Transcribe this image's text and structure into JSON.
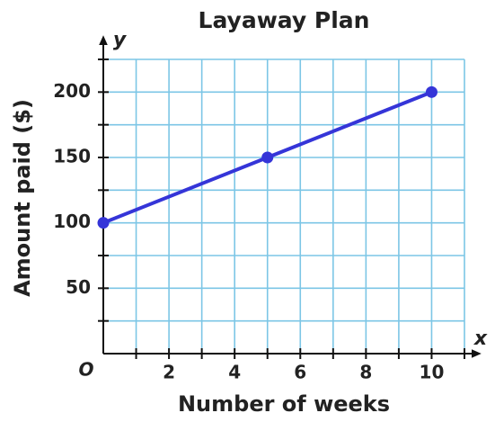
{
  "chart_data": {
    "type": "line",
    "title": "Layaway Plan",
    "x_label": "Number of weeks",
    "y_label": "Amount paid ($)",
    "x_axis_letter": "x",
    "y_axis_letter": "y",
    "origin_label": "O",
    "x": [
      0,
      5,
      10
    ],
    "values": [
      100,
      150,
      200
    ],
    "color": "#3535d8",
    "xlim": [
      0,
      11
    ],
    "ylim": [
      0,
      225
    ],
    "xticks": [
      2,
      4,
      6,
      8,
      10
    ],
    "yticks": [
      50,
      100,
      150,
      200
    ],
    "xgrid": [
      1,
      2,
      3,
      4,
      5,
      6,
      7,
      8,
      9,
      10,
      11
    ],
    "ygrid": [
      25,
      50,
      75,
      100,
      125,
      150,
      175,
      200,
      225
    ],
    "grid": true,
    "grid_color": "#7cc6e6"
  }
}
